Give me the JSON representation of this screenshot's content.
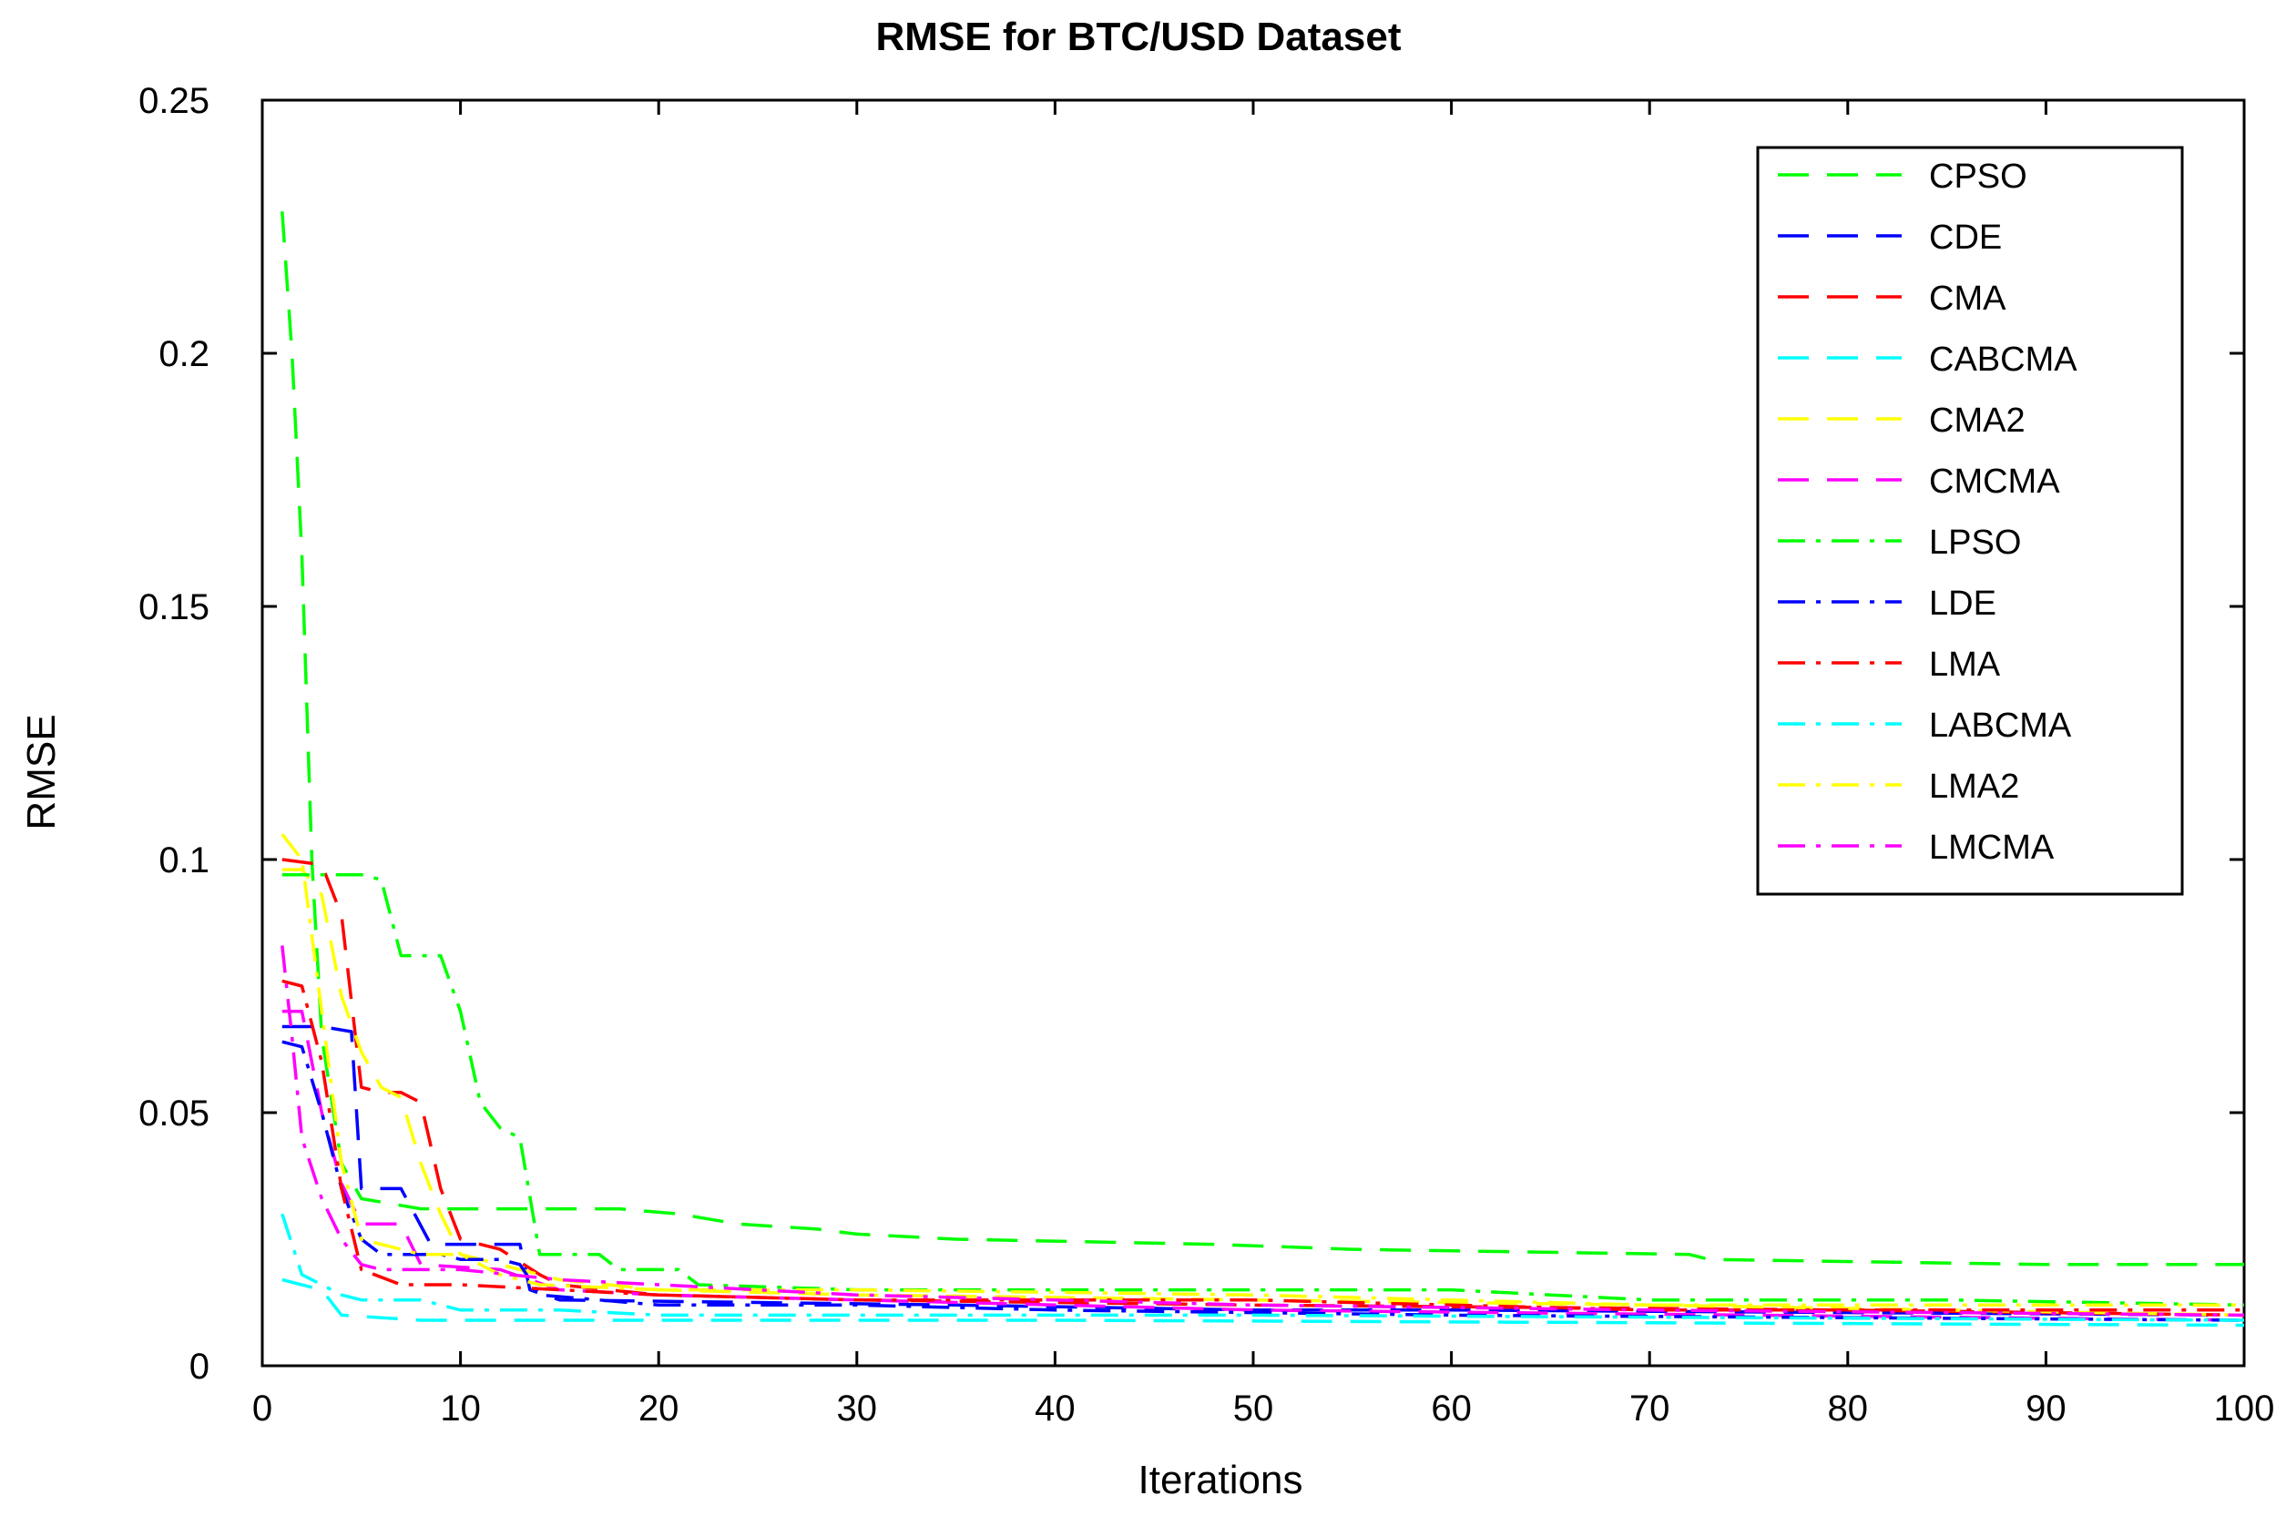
{
  "chart_data": {
    "type": "line",
    "title": "RMSE for BTC/USD Dataset",
    "xlabel": "Iterations",
    "ylabel": "RMSE",
    "xlim": [
      0,
      100
    ],
    "ylim": [
      0,
      0.25
    ],
    "xticks": [
      0,
      10,
      20,
      30,
      40,
      50,
      60,
      70,
      80,
      90,
      100
    ],
    "xtick_labels": [
      "0",
      "10",
      "20",
      "30",
      "40",
      "50",
      "60",
      "70",
      "80",
      "90",
      "100"
    ],
    "yticks": [
      0,
      0.05,
      0.1,
      0.15,
      0.2,
      0.25
    ],
    "ytick_labels": [
      "0",
      "0.05",
      "0.1",
      "0.15",
      "0.2",
      "0.25"
    ],
    "grid": false,
    "legend_position": "top-right",
    "series": [
      {
        "name": "CPSO",
        "color": "#00ff00",
        "dash": "dashed",
        "points": [
          [
            1,
            0.228
          ],
          [
            1.5,
            0.2
          ],
          [
            2,
            0.16
          ],
          [
            2.5,
            0.1
          ],
          [
            3,
            0.065
          ],
          [
            4,
            0.04
          ],
          [
            5,
            0.033
          ],
          [
            8,
            0.031
          ],
          [
            18,
            0.031
          ],
          [
            21,
            0.03
          ],
          [
            24,
            0.028
          ],
          [
            28,
            0.027
          ],
          [
            30,
            0.026
          ],
          [
            35,
            0.025
          ],
          [
            48,
            0.024
          ],
          [
            55,
            0.023
          ],
          [
            72,
            0.022
          ],
          [
            73,
            0.021
          ],
          [
            90,
            0.02
          ],
          [
            100,
            0.02
          ]
        ]
      },
      {
        "name": "CDE",
        "color": "#0000ff",
        "dash": "dashed",
        "points": [
          [
            1,
            0.067
          ],
          [
            3,
            0.067
          ],
          [
            4.5,
            0.066
          ],
          [
            5,
            0.035
          ],
          [
            7,
            0.035
          ],
          [
            8.5,
            0.024
          ],
          [
            13,
            0.024
          ],
          [
            13.5,
            0.015
          ],
          [
            15,
            0.013
          ],
          [
            35,
            0.012
          ],
          [
            50,
            0.011
          ],
          [
            60,
            0.011
          ],
          [
            100,
            0.01
          ]
        ]
      },
      {
        "name": "CMA",
        "color": "#ff0000",
        "dash": "dashed",
        "points": [
          [
            1,
            0.1
          ],
          [
            3,
            0.099
          ],
          [
            4,
            0.089
          ],
          [
            5,
            0.055
          ],
          [
            6,
            0.054
          ],
          [
            7,
            0.054
          ],
          [
            8,
            0.052
          ],
          [
            9,
            0.035
          ],
          [
            10,
            0.025
          ],
          [
            12,
            0.023
          ],
          [
            14,
            0.018
          ],
          [
            15,
            0.016
          ],
          [
            20,
            0.014
          ],
          [
            30,
            0.013
          ],
          [
            50,
            0.012
          ],
          [
            80,
            0.011
          ],
          [
            100,
            0.01
          ]
        ]
      },
      {
        "name": "CABCMA",
        "color": "#00ffff",
        "dash": "dashed",
        "points": [
          [
            1,
            0.017
          ],
          [
            3,
            0.015
          ],
          [
            4,
            0.01
          ],
          [
            8,
            0.009
          ],
          [
            15,
            0.009
          ],
          [
            20,
            0.009
          ],
          [
            40,
            0.009
          ],
          [
            100,
            0.008
          ]
        ]
      },
      {
        "name": "CMA2",
        "color": "#ffff00",
        "dash": "dashed",
        "points": [
          [
            1,
            0.098
          ],
          [
            2,
            0.098
          ],
          [
            3,
            0.093
          ],
          [
            4,
            0.073
          ],
          [
            5,
            0.062
          ],
          [
            6,
            0.055
          ],
          [
            7,
            0.053
          ],
          [
            8,
            0.04
          ],
          [
            9,
            0.03
          ],
          [
            10,
            0.022
          ],
          [
            12,
            0.02
          ],
          [
            15,
            0.017
          ],
          [
            20,
            0.015
          ],
          [
            30,
            0.014
          ],
          [
            50,
            0.013
          ],
          [
            70,
            0.012
          ],
          [
            100,
            0.01
          ]
        ]
      },
      {
        "name": "CMCMA",
        "color": "#ff00ff",
        "dash": "dashed",
        "points": [
          [
            1,
            0.07
          ],
          [
            2,
            0.07
          ],
          [
            3,
            0.05
          ],
          [
            4,
            0.036
          ],
          [
            5,
            0.028
          ],
          [
            7,
            0.028
          ],
          [
            8,
            0.02
          ],
          [
            12,
            0.019
          ],
          [
            15,
            0.015
          ],
          [
            20,
            0.014
          ],
          [
            30,
            0.013
          ],
          [
            50,
            0.011
          ],
          [
            100,
            0.009
          ]
        ]
      },
      {
        "name": "LPSO",
        "color": "#00ff00",
        "dash": "dashdot",
        "points": [
          [
            1,
            0.097
          ],
          [
            5,
            0.097
          ],
          [
            6,
            0.096
          ],
          [
            7,
            0.081
          ],
          [
            9,
            0.081
          ],
          [
            10,
            0.07
          ],
          [
            11,
            0.052
          ],
          [
            12,
            0.047
          ],
          [
            13,
            0.045
          ],
          [
            14,
            0.022
          ],
          [
            17,
            0.022
          ],
          [
            18,
            0.019
          ],
          [
            21,
            0.019
          ],
          [
            22,
            0.016
          ],
          [
            30,
            0.015
          ],
          [
            40,
            0.015
          ],
          [
            50,
            0.015
          ],
          [
            60,
            0.015
          ],
          [
            65,
            0.014
          ],
          [
            70,
            0.013
          ],
          [
            85,
            0.013
          ],
          [
            100,
            0.012
          ]
        ]
      },
      {
        "name": "LDE",
        "color": "#0000ff",
        "dash": "dashdot",
        "points": [
          [
            1,
            0.064
          ],
          [
            2,
            0.063
          ],
          [
            3,
            0.05
          ],
          [
            4,
            0.035
          ],
          [
            5,
            0.025
          ],
          [
            6,
            0.022
          ],
          [
            9,
            0.022
          ],
          [
            10,
            0.021
          ],
          [
            12,
            0.021
          ],
          [
            13,
            0.02
          ],
          [
            14,
            0.014
          ],
          [
            20,
            0.012
          ],
          [
            30,
            0.012
          ],
          [
            40,
            0.011
          ],
          [
            60,
            0.01
          ],
          [
            100,
            0.009
          ]
        ]
      },
      {
        "name": "LMA",
        "color": "#ff0000",
        "dash": "dashdot",
        "points": [
          [
            1,
            0.076
          ],
          [
            2,
            0.075
          ],
          [
            3,
            0.06
          ],
          [
            4,
            0.035
          ],
          [
            5,
            0.019
          ],
          [
            7,
            0.016
          ],
          [
            10,
            0.016
          ],
          [
            15,
            0.015
          ],
          [
            20,
            0.014
          ],
          [
            30,
            0.013
          ],
          [
            50,
            0.013
          ],
          [
            60,
            0.012
          ],
          [
            70,
            0.011
          ],
          [
            85,
            0.011
          ],
          [
            100,
            0.011
          ]
        ]
      },
      {
        "name": "LABCMA",
        "color": "#00ffff",
        "dash": "dashdot",
        "points": [
          [
            1,
            0.03
          ],
          [
            2,
            0.018
          ],
          [
            3,
            0.016
          ],
          [
            4,
            0.014
          ],
          [
            5,
            0.013
          ],
          [
            8,
            0.013
          ],
          [
            10,
            0.011
          ],
          [
            15,
            0.011
          ],
          [
            20,
            0.01
          ],
          [
            30,
            0.01
          ],
          [
            50,
            0.01
          ],
          [
            100,
            0.009
          ]
        ]
      },
      {
        "name": "LMA2",
        "color": "#ffff00",
        "dash": "dashdot",
        "points": [
          [
            1,
            0.105
          ],
          [
            2,
            0.1
          ],
          [
            3,
            0.07
          ],
          [
            4,
            0.04
          ],
          [
            5,
            0.025
          ],
          [
            8,
            0.022
          ],
          [
            10,
            0.022
          ],
          [
            12,
            0.018
          ],
          [
            14,
            0.016
          ],
          [
            20,
            0.015
          ],
          [
            30,
            0.015
          ],
          [
            50,
            0.014
          ],
          [
            70,
            0.012
          ],
          [
            100,
            0.012
          ]
        ]
      },
      {
        "name": "LMCMA",
        "color": "#ff00ff",
        "dash": "dashdot",
        "points": [
          [
            1,
            0.083
          ],
          [
            1.5,
            0.065
          ],
          [
            2,
            0.045
          ],
          [
            3,
            0.033
          ],
          [
            4,
            0.025
          ],
          [
            5,
            0.02
          ],
          [
            6,
            0.019
          ],
          [
            10,
            0.019
          ],
          [
            15,
            0.017
          ],
          [
            20,
            0.016
          ],
          [
            30,
            0.014
          ],
          [
            40,
            0.013
          ],
          [
            50,
            0.012
          ],
          [
            70,
            0.011
          ],
          [
            100,
            0.01
          ]
        ]
      }
    ]
  }
}
